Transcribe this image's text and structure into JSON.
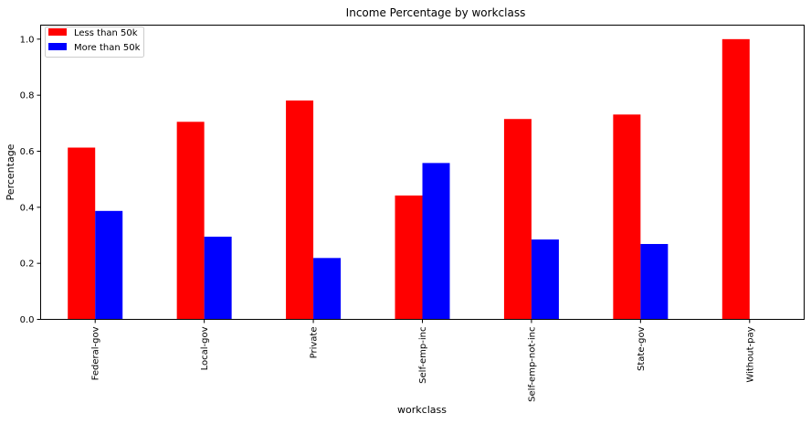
{
  "chart_data": {
    "type": "bar",
    "title": "Income Percentage by workclass",
    "xlabel": "workclass",
    "ylabel": "Percentage",
    "categories": [
      "Federal-gov",
      "Local-gov",
      "Private",
      "Self-emp-inc",
      "Self-emp-not-inc",
      "State-gov",
      "Without-pay"
    ],
    "series": [
      {
        "name": "Less than 50k",
        "color": "#ff0000",
        "values": [
          0.613,
          0.705,
          0.781,
          0.442,
          0.715,
          0.731,
          1.0
        ]
      },
      {
        "name": "More than 50k",
        "color": "#0000ff",
        "values": [
          0.387,
          0.295,
          0.219,
          0.558,
          0.285,
          0.269,
          0.0
        ]
      }
    ],
    "ylim": [
      0,
      1.05
    ],
    "yticks": [
      "0.0",
      "0.2",
      "0.4",
      "0.6",
      "0.8",
      "1.0"
    ],
    "grid": false,
    "legend_position": "top-left"
  }
}
